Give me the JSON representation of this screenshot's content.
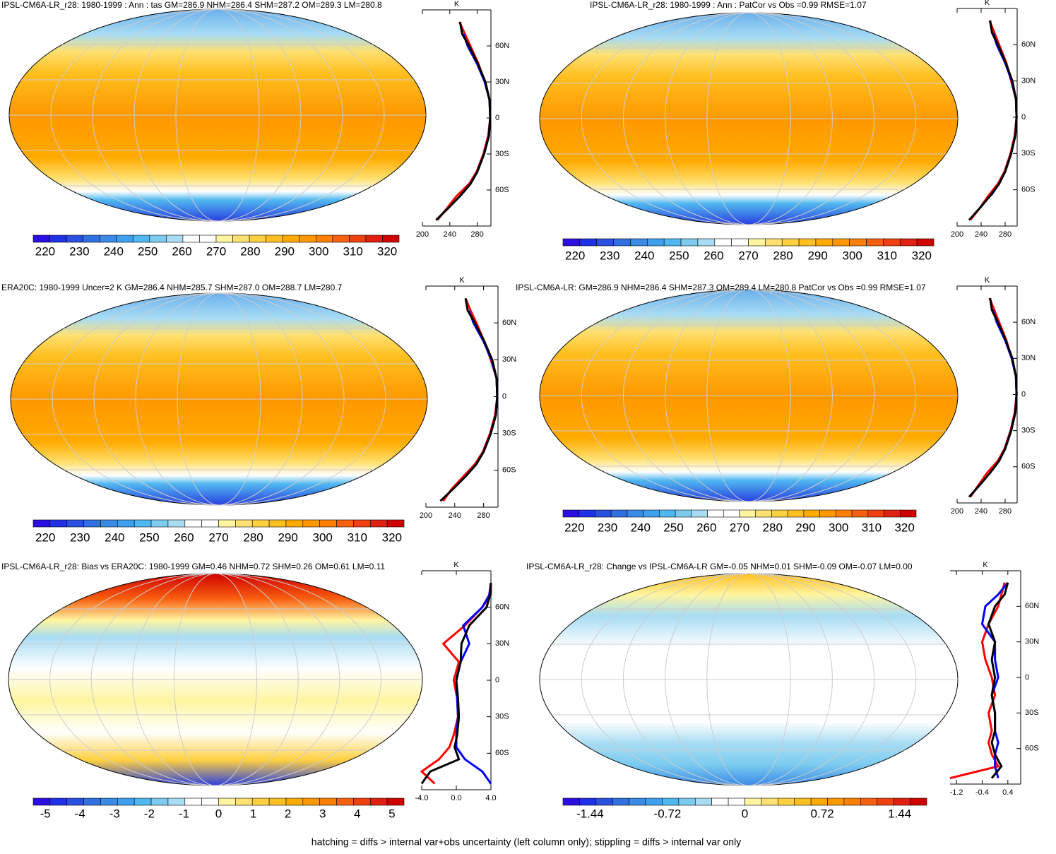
{
  "panels": [
    {
      "title": "IPSL-CM6A-LR_r28: 1980-1999 : Ann : tas GM=286.9 NHM=286.4 SHM=287.2 OM=289.3 LM=280.8",
      "colorbar": {
        "colors": [
          "#2a0fe0",
          "#2030e6",
          "#2a50e0",
          "#3070e0",
          "#3a8ae8",
          "#40a0f0",
          "#50b8f0",
          "#7cccf0",
          "#a8dcf4",
          "#ffffff",
          "#ffffff",
          "#fff5a0",
          "#ffe070",
          "#ffd040",
          "#ffbf20",
          "#ffaa00",
          "#ff9800",
          "#ff8000",
          "#f86010",
          "#f04010",
          "#e02010",
          "#d00000"
        ],
        "labels": [
          220,
          230,
          240,
          250,
          260,
          270,
          280,
          290,
          300,
          310,
          320
        ]
      },
      "profile": {
        "unit": "K",
        "xlim": [
          200,
          300
        ],
        "xticks": [
          200,
          240,
          280
        ],
        "ylim": [
          -90,
          90
        ],
        "yticks": [
          {
            "value": 60,
            "label": "60N"
          },
          {
            "value": 30,
            "label": "30N"
          },
          0,
          {
            "value": -30,
            "label": "30S"
          },
          {
            "value": -60,
            "label": "60S"
          }
        ],
        "lat": [
          -85,
          -75,
          -65,
          -55,
          -45,
          -30,
          -15,
          0,
          15,
          30,
          45,
          60,
          70,
          80
        ],
        "series": [
          {
            "color": "#ff0000",
            "values": [
              222,
              236,
              250,
              268,
              279,
              289,
              296,
              299,
              298,
              291,
              282,
              270,
              262,
              254
            ]
          },
          {
            "color": "#0000ff",
            "values": [
              null,
              null,
              255,
              270,
              280,
              290,
              297,
              299,
              298,
              291,
              280,
              266,
              260,
              null
            ]
          },
          {
            "color": "#000000",
            "values": [
              220,
              238,
              255,
              270,
              280,
              290,
              297,
              299,
              298,
              292,
              281,
              268,
              258,
              255
            ]
          }
        ]
      }
    },
    {
      "title": "IPSL-CM6A-LR_r28: 1980-1999 : Ann : PatCor vs Obs =0.99 RMSE=1.07",
      "colorbar": {
        "colors": [
          "#2a0fe0",
          "#2030e6",
          "#2a50e0",
          "#3070e0",
          "#3a8ae8",
          "#40a0f0",
          "#50b8f0",
          "#7cccf0",
          "#a8dcf4",
          "#ffffff",
          "#ffffff",
          "#fff5a0",
          "#ffe070",
          "#ffd040",
          "#ffbf20",
          "#ffaa00",
          "#ff9800",
          "#ff8000",
          "#f86010",
          "#f04010",
          "#e02010",
          "#d00000"
        ],
        "labels": [
          220,
          230,
          240,
          250,
          260,
          270,
          280,
          290,
          300,
          310,
          320
        ]
      },
      "profile": {
        "unit": "K",
        "xlim": [
          200,
          300
        ],
        "xticks": [
          200,
          240,
          280
        ],
        "ylim": [
          -90,
          90
        ],
        "yticks": [
          {
            "value": 60,
            "label": "60N"
          },
          {
            "value": 30,
            "label": "30N"
          },
          0,
          {
            "value": -30,
            "label": "30S"
          },
          {
            "value": -60,
            "label": "60S"
          }
        ],
        "lat": [
          -85,
          -75,
          -65,
          -55,
          -45,
          -30,
          -15,
          0,
          15,
          30,
          45,
          60,
          70,
          80
        ],
        "series": [
          {
            "color": "#ff0000",
            "values": [
              222,
              238,
              252,
              268,
              279,
              289,
              296,
              299,
              298,
              290,
              282,
              270,
              262,
              254
            ]
          },
          {
            "color": "#0000ff",
            "values": [
              null,
              null,
              256,
              270,
              280,
              290,
              297,
              299,
              298,
              291,
              280,
              266,
              260,
              null
            ]
          },
          {
            "color": "#000000",
            "values": [
              220,
              238,
              255,
              270,
              280,
              290,
              297,
              299,
              298,
              292,
              281,
              268,
              258,
              255
            ]
          }
        ]
      }
    },
    {
      "title": "ERA20C: 1980-1999 Uncer=2 K GM=286.4 NHM=285.7 SHM=287.0 OM=288.7 LM=280.7",
      "colorbar": {
        "colors": [
          "#2a0fe0",
          "#2030e6",
          "#2a50e0",
          "#3070e0",
          "#3a8ae8",
          "#40a0f0",
          "#50b8f0",
          "#7cccf0",
          "#a8dcf4",
          "#ffffff",
          "#ffffff",
          "#fff5a0",
          "#ffe070",
          "#ffd040",
          "#ffbf20",
          "#ffaa00",
          "#ff9800",
          "#ff8000",
          "#f86010",
          "#f04010",
          "#e02010",
          "#d00000"
        ],
        "labels": [
          220,
          230,
          240,
          250,
          260,
          270,
          280,
          290,
          300,
          310,
          320
        ]
      },
      "profile": {
        "unit": "K",
        "xlim": [
          200,
          300
        ],
        "xticks": [
          200,
          240,
          280
        ],
        "ylim": [
          -90,
          90
        ],
        "yticks": [
          {
            "value": 60,
            "label": "60N"
          },
          {
            "value": 30,
            "label": "30N"
          },
          0,
          {
            "value": -30,
            "label": "30S"
          },
          {
            "value": -60,
            "label": "60S"
          }
        ],
        "lat": [
          -85,
          -75,
          -65,
          -55,
          -45,
          -30,
          -15,
          0,
          15,
          30,
          45,
          60,
          70,
          80
        ],
        "series": [
          {
            "color": "#ff0000",
            "values": [
              224,
              236,
              252,
              268,
              279,
              289,
              296,
              299,
              298,
              290,
              281,
              270,
              262,
              255
            ]
          },
          {
            "color": "#0000ff",
            "values": [
              null,
              null,
              255,
              270,
              280,
              290,
              297,
              299,
              298,
              291,
              280,
              266,
              260,
              null
            ]
          },
          {
            "color": "#000000",
            "values": [
              220,
              238,
              255,
              270,
              280,
              290,
              297,
              299,
              298,
              292,
              281,
              268,
              258,
              255
            ]
          }
        ]
      }
    },
    {
      "title": "IPSL-CM6A-LR: GM=286.9 NHM=286.4 SHM=287.3 OM=289.4 LM=280.8 PatCor vs Obs =0.99 RMSE=1.07",
      "colorbar": {
        "colors": [
          "#2a0fe0",
          "#2030e6",
          "#2a50e0",
          "#3070e0",
          "#3a8ae8",
          "#40a0f0",
          "#50b8f0",
          "#7cccf0",
          "#a8dcf4",
          "#ffffff",
          "#ffffff",
          "#fff5a0",
          "#ffe070",
          "#ffd040",
          "#ffbf20",
          "#ffaa00",
          "#ff9800",
          "#ff8000",
          "#f86010",
          "#f04010",
          "#e02010",
          "#d00000"
        ],
        "labels": [
          220,
          230,
          240,
          250,
          260,
          270,
          280,
          290,
          300,
          310,
          320
        ]
      },
      "profile": {
        "unit": "K",
        "xlim": [
          200,
          300
        ],
        "xticks": [
          200,
          240,
          280
        ],
        "ylim": [
          -90,
          90
        ],
        "yticks": [
          {
            "value": 60,
            "label": "60N"
          },
          {
            "value": 30,
            "label": "30N"
          },
          0,
          {
            "value": -30,
            "label": "30S"
          },
          {
            "value": -60,
            "label": "60S"
          }
        ],
        "lat": [
          -85,
          -75,
          -65,
          -55,
          -45,
          -30,
          -15,
          0,
          15,
          30,
          45,
          60,
          70,
          80
        ],
        "series": [
          {
            "color": "#ff0000",
            "values": [
              222,
              236,
              250,
              268,
              279,
              289,
              296,
              299,
              298,
              291,
              282,
              270,
              262,
              254
            ]
          },
          {
            "color": "#0000ff",
            "values": [
              null,
              null,
              255,
              270,
              280,
              290,
              297,
              299,
              298,
              291,
              280,
              266,
              260,
              null
            ]
          },
          {
            "color": "#000000",
            "values": [
              220,
              238,
              255,
              270,
              280,
              290,
              297,
              299,
              298,
              292,
              281,
              268,
              258,
              255
            ]
          }
        ]
      }
    },
    {
      "title": "IPSL-CM6A-LR_r28: Bias vs ERA20C: 1980-1999 GM=0.46 NHM=0.72 SHM=0.26 OM=0.61 LM=0.11",
      "colorbar": {
        "colors": [
          "#2a0fe0",
          "#2030e6",
          "#2a50e0",
          "#3070e0",
          "#3a8ae8",
          "#40a0f0",
          "#50b8f0",
          "#7cccf0",
          "#a8dcf4",
          "#ffffff",
          "#ffffff",
          "#fff5a0",
          "#ffe070",
          "#ffd040",
          "#ffbf20",
          "#ffaa00",
          "#ff9800",
          "#ff8000",
          "#f86010",
          "#f04010",
          "#e02010",
          "#d00000"
        ],
        "labels": [
          -5,
          -4,
          -3,
          -2,
          -1,
          0,
          1,
          2,
          3,
          4,
          5
        ]
      },
      "profile": {
        "unit": "K",
        "xlim": [
          -4,
          4
        ],
        "xticks": [
          {
            "value": -4,
            "label": "-4.0"
          },
          {
            "value": 0,
            "label": "0.0"
          },
          {
            "value": 4,
            "label": "4.0"
          }
        ],
        "ylim": [
          -90,
          90
        ],
        "yticks": [
          {
            "value": 60,
            "label": "60N"
          },
          {
            "value": 30,
            "label": "30N"
          },
          0,
          {
            "value": -30,
            "label": "30S"
          },
          {
            "value": -60,
            "label": "60S"
          }
        ],
        "lat": [
          -85,
          -75,
          -65,
          -55,
          -45,
          -30,
          -15,
          0,
          15,
          30,
          45,
          60,
          70,
          80
        ],
        "series": [
          {
            "color": "#ff0000",
            "values": [
              -2.5,
              -4,
              -2,
              -0.8,
              -0.3,
              0.2,
              0.1,
              -0.3,
              0.3,
              -1.5,
              1,
              3,
              4,
              4
            ]
          },
          {
            "color": "#0000ff",
            "values": [
              4,
              3,
              1,
              0,
              0,
              0.2,
              0.1,
              0,
              0.5,
              1.5,
              0.8,
              3,
              3.8,
              4
            ]
          },
          {
            "color": "#000000",
            "values": [
              -4,
              -3,
              0.3,
              -0.2,
              0.1,
              0.3,
              0.2,
              0,
              0.5,
              0.6,
              1.5,
              3.5,
              3.9,
              4
            ]
          }
        ]
      }
    },
    {
      "title": "IPSL-CM6A-LR_r28: Change vs IPSL-CM6A-LR GM=-0.05 NHM=0.01 SHM=-0.09 OM=-0.07 LM=0.00",
      "colorbar": {
        "colors": [
          "#2a0fe0",
          "#2030e6",
          "#2a50e0",
          "#3070e0",
          "#3a8ae8",
          "#40a0f0",
          "#50b8f0",
          "#7cccf0",
          "#a8dcf4",
          "#ffffff",
          "#ffffff",
          "#fff5a0",
          "#ffe070",
          "#ffd040",
          "#ffbf20",
          "#ffaa00",
          "#ff9800",
          "#ff8000",
          "#f86010",
          "#f04010",
          "#e02010",
          "#d00000"
        ],
        "labels": [
          -1.44,
          -0.72,
          0,
          0.72,
          1.44
        ]
      },
      "profile": {
        "unit": "K",
        "xlim": [
          -1.4,
          0.8
        ],
        "xticks": [
          -1.2,
          -0.4,
          0.4
        ],
        "ylim": [
          -90,
          90
        ],
        "yticks": [
          {
            "value": 60,
            "label": "60N"
          },
          {
            "value": 30,
            "label": "30N"
          },
          0,
          {
            "value": -30,
            "label": "30S"
          },
          {
            "value": -60,
            "label": "60S"
          }
        ],
        "lat": [
          -85,
          -75,
          -65,
          -55,
          -45,
          -30,
          -15,
          0,
          15,
          30,
          45,
          60,
          70,
          80
        ],
        "series": [
          {
            "color": "#ff0000",
            "values": [
              -1.4,
              0.1,
              -0.1,
              -0.2,
              -0.1,
              -0.2,
              0,
              -0.1,
              -0.3,
              -0.4,
              -0.2,
              0.1,
              0.2,
              0.3
            ]
          },
          {
            "color": "#0000ff",
            "values": [
              0.1,
              0,
              0,
              0.1,
              0,
              0,
              -0.1,
              0.1,
              0,
              0,
              -0.4,
              -0.3,
              0.1,
              0.4
            ]
          },
          {
            "color": "#000000",
            "values": [
              -0.1,
              0.2,
              0,
              -0.1,
              0,
              0,
              -0.1,
              0,
              -0.1,
              0,
              -0.2,
              0,
              0.3,
              0.4
            ]
          }
        ]
      }
    }
  ],
  "footnote": "hatching = diffs > internal var+obs uncertainty (left column only); stippling = diffs > internal var only"
}
